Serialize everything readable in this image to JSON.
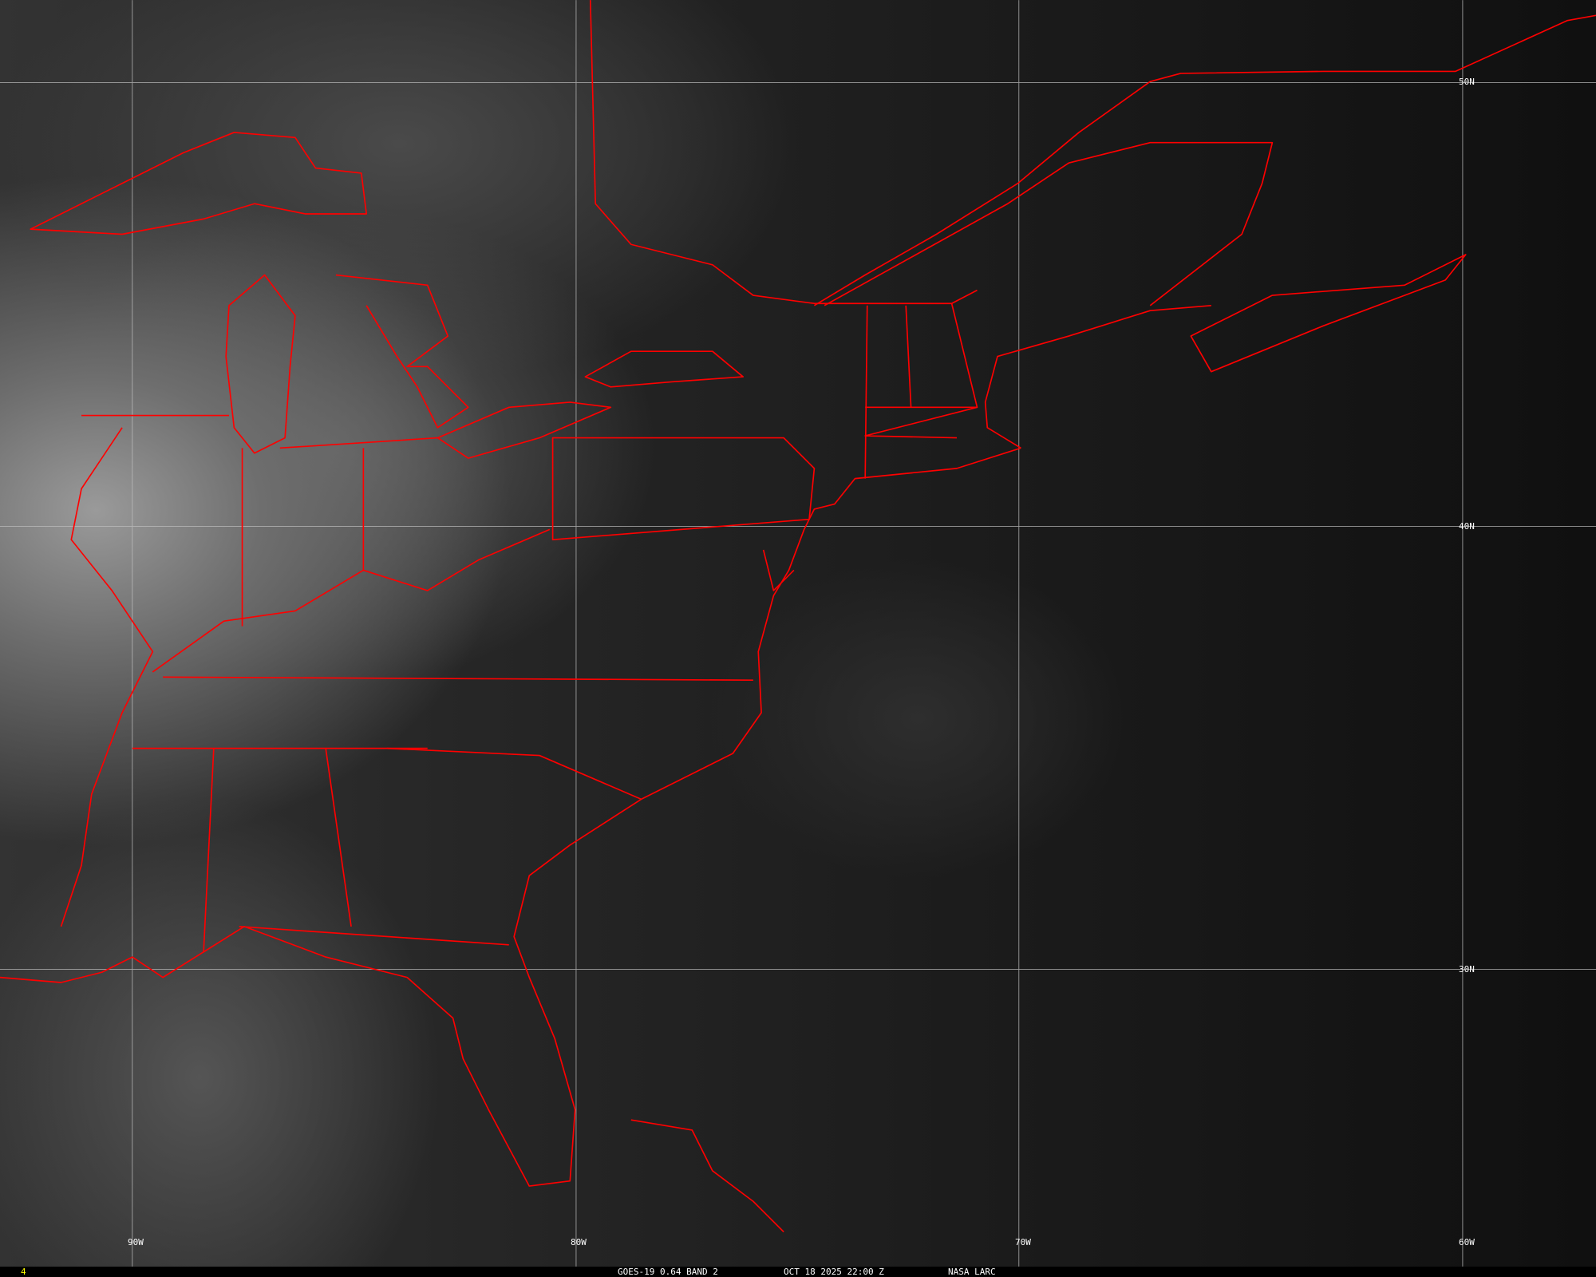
{
  "map": {
    "lon_labels": [
      "90W",
      "80W",
      "70W",
      "60W"
    ],
    "lat_labels": [
      "50N",
      "40N",
      "30N"
    ],
    "coast_color": "#ff0000",
    "grid_color": "#bfbfbf"
  },
  "footer": {
    "frame_number": "4",
    "satellite": "GOES-19 0.64 BAND 2",
    "datetime": "OCT 18 2025 22:00 Z",
    "source": "NASA LARC",
    "frame_color": "#ffff00"
  }
}
